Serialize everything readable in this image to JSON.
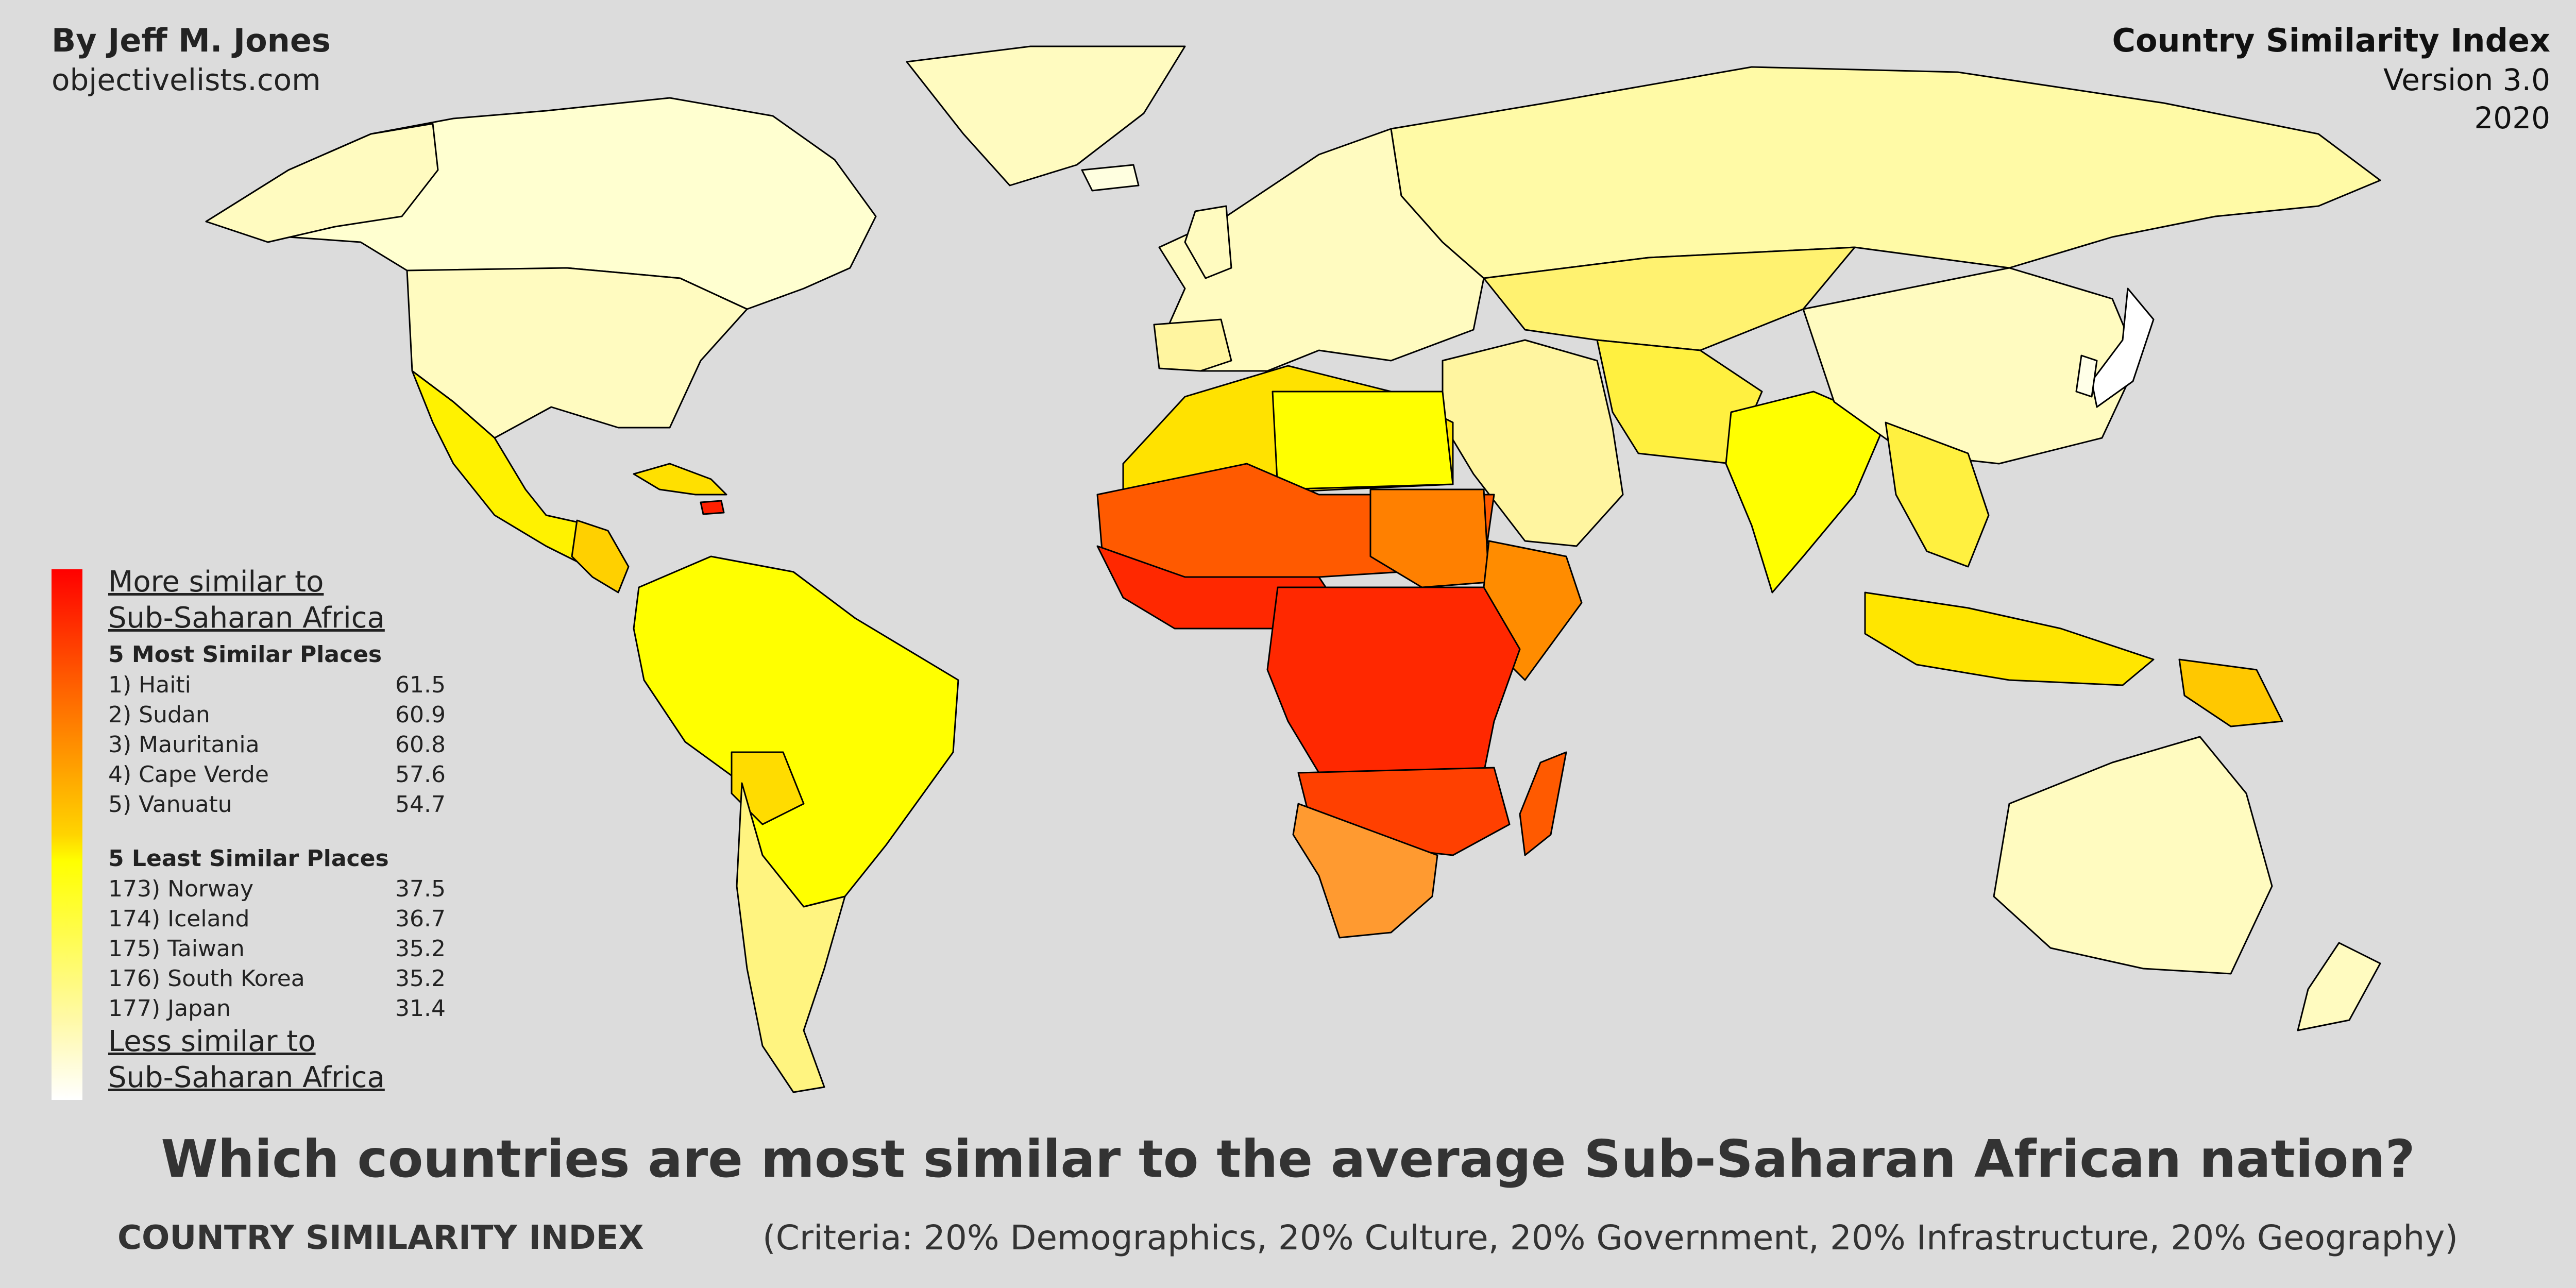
{
  "header": {
    "author": "By Jeff M. Jones",
    "site": "objectivelists.com",
    "index_title": "Country Similarity Index",
    "version": "Version 3.0",
    "year": "2020"
  },
  "legend": {
    "more_line1": "More similar to",
    "more_line2": "Sub-Saharan Africa",
    "most_title": "5 Most Similar Places",
    "most": [
      {
        "rank_name": "1) Haiti",
        "score": "61.5"
      },
      {
        "rank_name": "2) Sudan",
        "score": "60.9"
      },
      {
        "rank_name": "3) Mauritania",
        "score": "60.8"
      },
      {
        "rank_name": "4) Cape Verde",
        "score": "57.6"
      },
      {
        "rank_name": "5) Vanuatu",
        "score": "54.7"
      }
    ],
    "least_title": "5 Least Similar Places",
    "least": [
      {
        "rank_name": "173) Norway",
        "score": "37.5"
      },
      {
        "rank_name": "174) Iceland",
        "score": "36.7"
      },
      {
        "rank_name": "175) Taiwan",
        "score": "35.2"
      },
      {
        "rank_name": "176) South Korea",
        "score": "35.2"
      },
      {
        "rank_name": "177) Japan",
        "score": "31.4"
      }
    ],
    "less_line1": "Less similar to",
    "less_line2": "Sub-Saharan Africa"
  },
  "colors": {
    "background": "#dcdcdc",
    "most_similar": "#ff0000",
    "high": "#ff6d00",
    "mid": "#ffd400",
    "low": "#ffff00",
    "least_similar": "#ffffff",
    "border": "#000000"
  },
  "title": {
    "question": "Which countries are most similar to the average Sub-Saharan African nation?",
    "footer_name": "COUNTRY SIMILARITY INDEX",
    "criteria": "(Criteria: 20% Demographics, 20% Culture, 20% Government, 20% Infrastructure, 20% Geography)"
  }
}
